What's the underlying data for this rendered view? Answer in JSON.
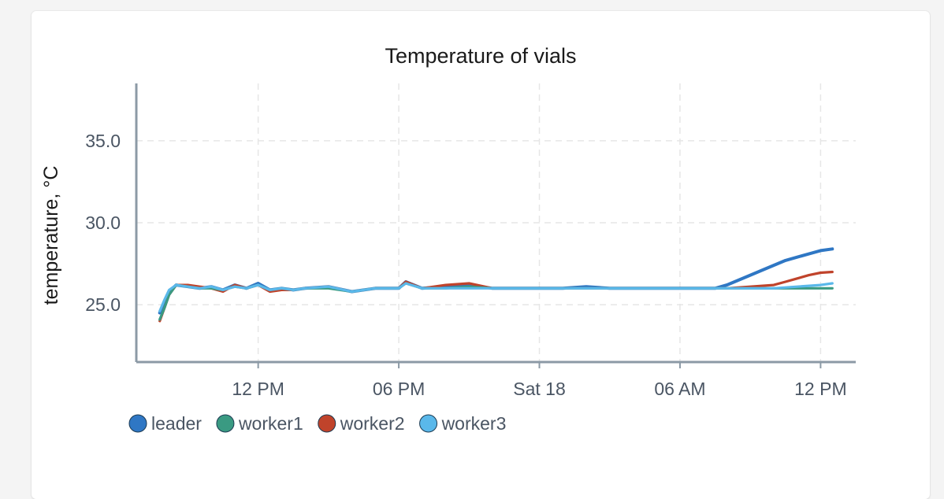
{
  "chart_data": {
    "type": "line",
    "title": "Temperature of vials",
    "xlabel": "",
    "ylabel": "temperature, °C",
    "x_ticks": [
      "12 PM",
      "06 PM",
      "Sat 18",
      "06 AM",
      "12 PM"
    ],
    "y_ticks": [
      "25.0",
      "30.0",
      "35.0"
    ],
    "ylim": [
      21.5,
      38.5
    ],
    "x_unit": "hours since first plotted tick (12 PM Fri 17)",
    "xlim": [
      -5.2,
      25.5
    ],
    "grid": true,
    "legend_position": "bottom-left",
    "series": [
      {
        "name": "leader",
        "color": "#2f77c4",
        "x": [
          -4.2,
          -4.0,
          -3.8,
          -3.5,
          -3.0,
          -2.5,
          -2.0,
          -1.5,
          -1.0,
          -0.5,
          0.0,
          0.5,
          1.0,
          1.5,
          2.0,
          3.0,
          4.0,
          5.0,
          6.0,
          6.3,
          7.0,
          8.0,
          9.0,
          10.0,
          11.0,
          12.0,
          13.0,
          14.0,
          15.0,
          16.0,
          17.0,
          18.0,
          19.0,
          19.5,
          20.0,
          20.5,
          21.0,
          21.5,
          22.0,
          22.5,
          23.0,
          23.5,
          24.0,
          24.5
        ],
        "values": [
          24.5,
          25.2,
          25.8,
          26.2,
          26.1,
          26.0,
          26.1,
          25.9,
          26.2,
          26.0,
          26.3,
          25.9,
          26.0,
          25.9,
          26.0,
          26.1,
          25.8,
          26.0,
          26.0,
          26.4,
          26.0,
          26.1,
          26.2,
          26.0,
          26.0,
          26.0,
          26.0,
          26.1,
          26.0,
          26.0,
          26.0,
          26.0,
          26.0,
          26.0,
          26.2,
          26.5,
          26.8,
          27.1,
          27.4,
          27.7,
          27.9,
          28.1,
          28.3,
          28.4
        ]
      },
      {
        "name": "worker1",
        "color": "#3a9a82",
        "x": [
          -4.2,
          -4.0,
          -3.8,
          -3.5,
          -3.0,
          -2.5,
          -2.0,
          -1.5,
          -1.0,
          -0.5,
          0.0,
          0.5,
          1.0,
          1.5,
          2.0,
          3.0,
          4.0,
          5.0,
          6.0,
          6.3,
          7.0,
          8.0,
          9.0,
          10.0,
          11.0,
          12.0,
          13.0,
          14.0,
          15.0,
          16.0,
          17.0,
          18.0,
          19.0,
          20.0,
          21.0,
          22.0,
          23.0,
          24.0,
          24.5
        ],
        "values": [
          24.1,
          24.8,
          25.6,
          26.2,
          26.1,
          26.0,
          26.0,
          25.9,
          26.1,
          26.0,
          26.2,
          25.9,
          26.0,
          25.9,
          26.0,
          26.0,
          25.8,
          26.0,
          26.0,
          26.3,
          26.0,
          26.0,
          26.1,
          26.0,
          26.0,
          26.0,
          26.0,
          26.0,
          26.0,
          26.0,
          26.0,
          26.0,
          26.0,
          26.0,
          26.0,
          26.0,
          26.0,
          26.0,
          26.0
        ]
      },
      {
        "name": "worker2",
        "color": "#c0432b",
        "x": [
          -4.2,
          -4.0,
          -3.8,
          -3.5,
          -3.0,
          -2.5,
          -2.0,
          -1.5,
          -1.0,
          -0.5,
          0.0,
          0.5,
          1.0,
          1.5,
          2.0,
          3.0,
          4.0,
          5.0,
          6.0,
          6.3,
          7.0,
          8.0,
          9.0,
          10.0,
          11.0,
          12.0,
          13.0,
          14.0,
          15.0,
          16.0,
          17.0,
          18.0,
          19.0,
          20.0,
          21.0,
          22.0,
          22.5,
          23.0,
          23.5,
          24.0,
          24.5
        ],
        "values": [
          24.0,
          24.8,
          25.6,
          26.2,
          26.2,
          26.1,
          26.0,
          25.8,
          26.2,
          26.0,
          26.2,
          25.8,
          25.9,
          25.9,
          26.0,
          26.1,
          25.8,
          26.0,
          26.0,
          26.4,
          26.0,
          26.2,
          26.3,
          26.0,
          26.0,
          26.0,
          26.0,
          26.0,
          26.0,
          26.0,
          26.0,
          26.0,
          26.0,
          26.0,
          26.1,
          26.2,
          26.4,
          26.6,
          26.8,
          26.95,
          27.0
        ]
      },
      {
        "name": "worker3",
        "color": "#5ab8ea",
        "x": [
          -4.2,
          -4.0,
          -3.8,
          -3.5,
          -3.0,
          -2.5,
          -2.0,
          -1.5,
          -1.0,
          -0.5,
          0.0,
          0.5,
          1.0,
          1.5,
          2.0,
          3.0,
          4.0,
          5.0,
          6.0,
          6.3,
          7.0,
          8.0,
          9.0,
          10.0,
          11.0,
          12.0,
          13.0,
          14.0,
          15.0,
          16.0,
          17.0,
          18.0,
          19.0,
          20.0,
          21.0,
          22.0,
          23.0,
          24.0,
          24.5
        ],
        "values": [
          24.6,
          25.3,
          25.9,
          26.2,
          26.1,
          26.0,
          26.1,
          25.9,
          26.1,
          26.0,
          26.2,
          25.9,
          26.0,
          25.9,
          26.0,
          26.1,
          25.8,
          26.0,
          26.0,
          26.3,
          26.0,
          26.0,
          26.0,
          26.0,
          26.0,
          26.0,
          26.0,
          26.0,
          26.0,
          26.0,
          26.0,
          26.0,
          26.0,
          26.0,
          26.0,
          26.0,
          26.1,
          26.2,
          26.3
        ]
      }
    ]
  }
}
